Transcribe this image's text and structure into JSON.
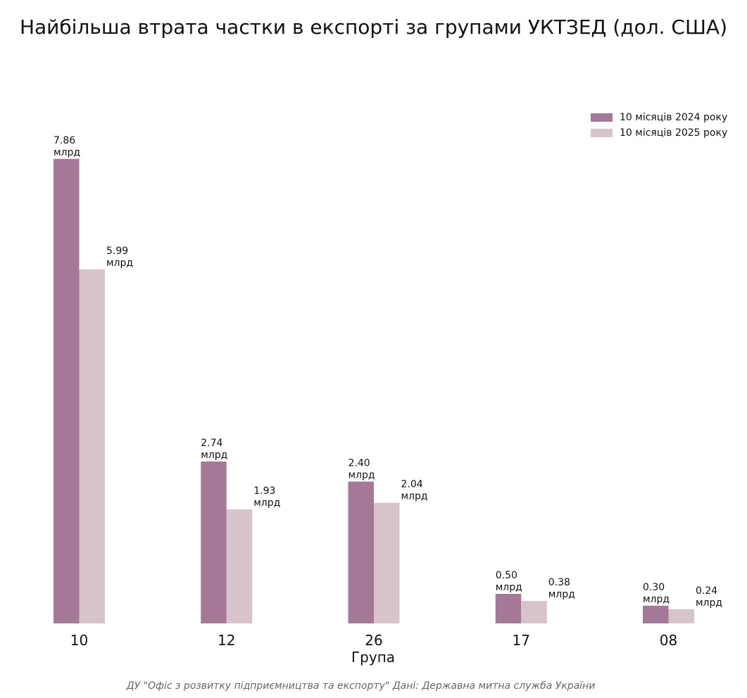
{
  "title": "Найбільша втрата частки в експорті за групами УКТЗЕД (дол. США)",
  "source_note": "ДУ \"Офіс з розвитку підприємництва та експорту\" Дані: Державна митна служба України",
  "colors": {
    "series_2024": "#a47896",
    "series_2025": "#d6c4ca",
    "text": "#111111",
    "note": "#666666"
  },
  "chart_data": {
    "type": "bar",
    "title": "Найбільша втрата частки в експорті за групами УКТЗЕД (дол. США)",
    "xlabel": "Група",
    "ylabel": "",
    "categories": [
      "10",
      "12",
      "26",
      "17",
      "08"
    ],
    "series": [
      {
        "name": "10 місяців 2024 року",
        "values": [
          7.86,
          2.74,
          2.4,
          0.5,
          0.3
        ],
        "labels": [
          "7.86\nмлрд",
          "2.74\nмлрд",
          "2.40\nмлрд",
          "0.50\nмлрд",
          "0.30\nмлрд"
        ]
      },
      {
        "name": "10 місяців 2025 року",
        "values": [
          5.99,
          1.93,
          2.04,
          0.38,
          0.24
        ],
        "labels": [
          "5.99\nмлрд",
          "1.93\nмлрд",
          "2.04\nмлрд",
          "0.38\nмлрд",
          "0.24\nмлрд"
        ]
      }
    ],
    "unit": "млрд дол. США",
    "ylim": [
      0,
      8.25
    ],
    "grid": false,
    "legend_position": "top-right"
  }
}
